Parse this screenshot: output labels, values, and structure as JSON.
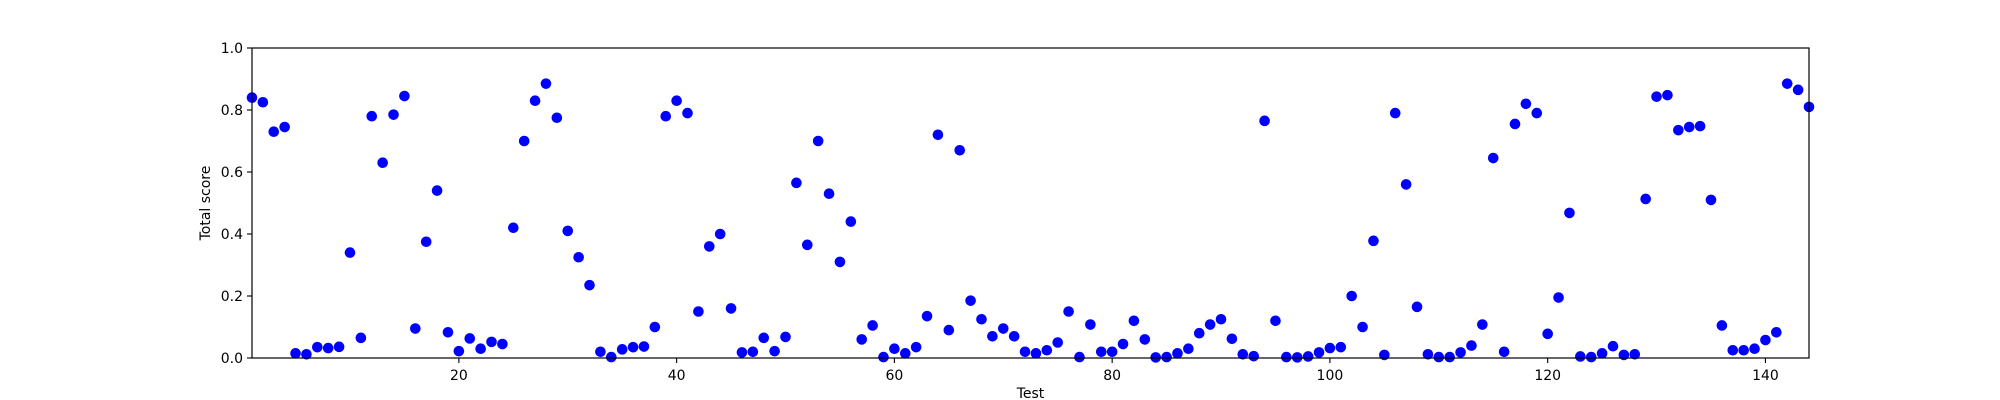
{
  "chart_data": {
    "type": "scatter",
    "xlabel": "Test",
    "ylabel": "Total score",
    "xlim": [
      1,
      144
    ],
    "ylim": [
      0.0,
      1.0
    ],
    "x_ticks": [
      20,
      40,
      60,
      80,
      100,
      120,
      140
    ],
    "x_tick_labels": [
      "20",
      "40",
      "60",
      "80",
      "100",
      "120",
      "140"
    ],
    "y_ticks": [
      0.0,
      0.2,
      0.4,
      0.6,
      0.8,
      1.0
    ],
    "y_tick_labels": [
      "0.0",
      "0.2",
      "0.4",
      "0.6",
      "0.8",
      "1.0"
    ],
    "grid": false,
    "marker_color": "#0000ff",
    "series": [
      {
        "x": [
          1,
          2,
          3,
          4,
          5,
          6,
          7,
          8,
          9,
          10,
          11,
          12,
          13,
          14,
          15,
          16,
          17,
          18,
          19,
          20,
          21,
          22,
          23,
          24,
          25,
          26,
          27,
          28,
          29,
          30,
          31,
          32,
          33,
          34,
          35,
          36,
          37,
          38,
          39,
          40,
          41,
          42,
          43,
          44,
          45,
          46,
          47,
          48,
          49,
          50,
          51,
          52,
          53,
          54,
          55,
          56,
          57,
          58,
          59,
          60,
          61,
          62,
          63,
          64,
          65,
          66,
          67,
          68,
          69,
          70,
          71,
          72,
          73,
          74,
          75,
          76,
          77,
          78,
          79,
          80,
          81,
          82,
          83,
          84,
          85,
          86,
          87,
          88,
          89,
          90,
          91,
          92,
          93,
          94,
          95,
          96,
          97,
          98,
          99,
          100,
          101,
          102,
          103,
          104,
          105,
          106,
          107,
          108,
          109,
          110,
          111,
          112,
          113,
          114,
          115,
          116,
          117,
          118,
          119,
          120,
          121,
          122,
          123,
          124,
          125,
          126,
          127,
          128,
          129,
          130,
          131,
          132,
          133,
          134,
          135,
          136,
          137,
          138,
          139,
          140,
          141,
          142,
          143,
          144
        ],
        "y": [
          0.84,
          0.825,
          0.73,
          0.745,
          0.015,
          0.012,
          0.035,
          0.032,
          0.036,
          0.34,
          0.065,
          0.78,
          0.63,
          0.785,
          0.845,
          0.095,
          0.375,
          0.54,
          0.083,
          0.022,
          0.063,
          0.03,
          0.052,
          0.045,
          0.42,
          0.7,
          0.83,
          0.885,
          0.775,
          0.41,
          0.325,
          0.235,
          0.02,
          0.003,
          0.028,
          0.035,
          0.037,
          0.1,
          0.78,
          0.83,
          0.79,
          0.15,
          0.36,
          0.4,
          0.16,
          0.018,
          0.02,
          0.065,
          0.022,
          0.068,
          0.565,
          0.365,
          0.7,
          0.53,
          0.31,
          0.44,
          0.06,
          0.105,
          0.003,
          0.03,
          0.015,
          0.035,
          0.135,
          0.72,
          0.09,
          0.67,
          0.185,
          0.125,
          0.07,
          0.095,
          0.07,
          0.02,
          0.015,
          0.025,
          0.05,
          0.15,
          0.003,
          0.108,
          0.02,
          0.02,
          0.045,
          0.12,
          0.06,
          0.002,
          0.003,
          0.015,
          0.03,
          0.08,
          0.108,
          0.125,
          0.062,
          0.012,
          0.006,
          0.765,
          0.12,
          0.003,
          0.002,
          0.005,
          0.018,
          0.032,
          0.035,
          0.2,
          0.1,
          0.378,
          0.01,
          0.79,
          0.56,
          0.165,
          0.012,
          0.003,
          0.003,
          0.018,
          0.04,
          0.108,
          0.645,
          0.02,
          0.755,
          0.82,
          0.79,
          0.078,
          0.195,
          0.468,
          0.005,
          0.003,
          0.015,
          0.038,
          0.01,
          0.012,
          0.513,
          0.843,
          0.848,
          0.735,
          0.745,
          0.748,
          0.51,
          0.105,
          0.025,
          0.025,
          0.03,
          0.058,
          0.083,
          0.885,
          0.865,
          0.81
        ]
      }
    ]
  }
}
